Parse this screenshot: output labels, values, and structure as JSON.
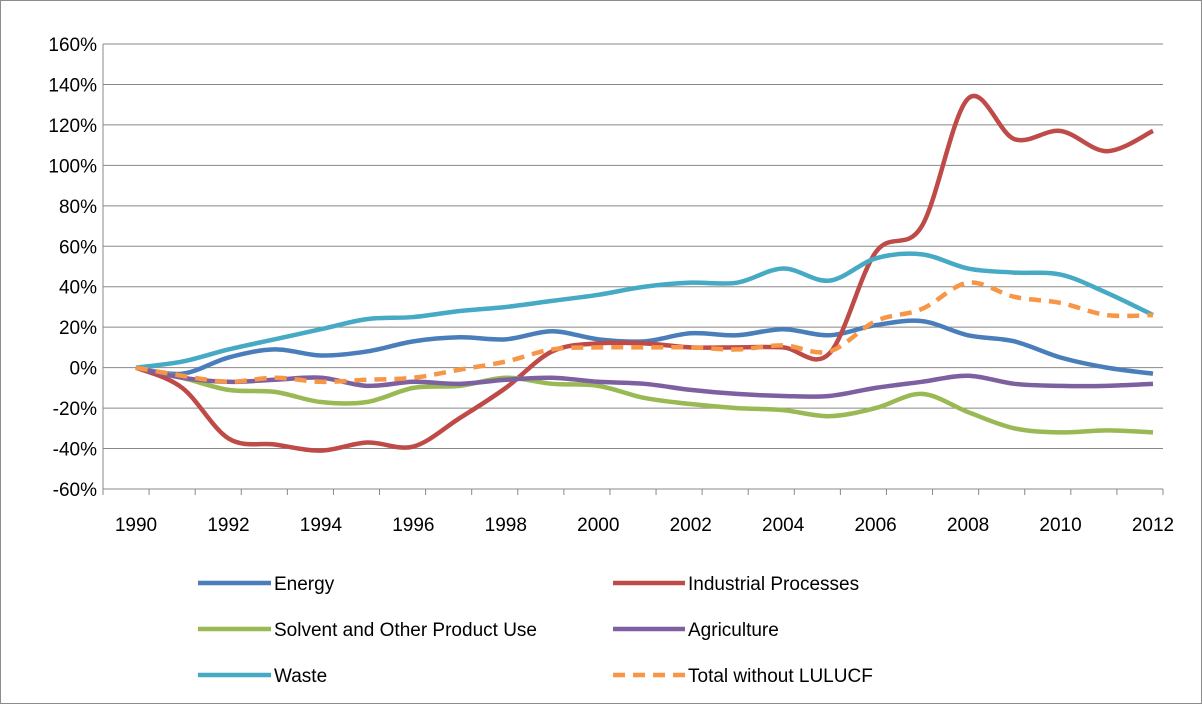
{
  "chart_data": {
    "type": "line",
    "title": "",
    "xlabel": "",
    "ylabel": "",
    "ylim": [
      -60,
      160
    ],
    "y_tick_step": 20,
    "y_unit": "%",
    "x_ticks": [
      "1990",
      "1992",
      "1994",
      "1996",
      "1998",
      "2000",
      "2002",
      "2004",
      "2006",
      "2008",
      "2010",
      "2012"
    ],
    "grid": "horizontal",
    "legend_position": "bottom",
    "x": [
      1990,
      1991,
      1992,
      1993,
      1994,
      1995,
      1996,
      1997,
      1998,
      1999,
      2000,
      2001,
      2002,
      2003,
      2004,
      2005,
      2006,
      2007,
      2008,
      2009,
      2010,
      2011,
      2012
    ],
    "series": [
      {
        "name": "Energy",
        "color": "#4a7ebb",
        "dash": false,
        "values": [
          0,
          -3,
          5,
          9,
          6,
          8,
          13,
          15,
          14,
          18,
          14,
          13,
          17,
          16,
          19,
          16,
          21,
          23,
          16,
          13,
          5,
          0,
          -3
        ]
      },
      {
        "name": "Industrial Processes",
        "color": "#be4b48",
        "dash": false,
        "values": [
          0,
          -10,
          -35,
          -38,
          -41,
          -37,
          -39,
          -25,
          -10,
          8,
          12,
          12,
          10,
          10,
          10,
          7,
          57,
          70,
          133,
          113,
          117,
          107,
          117
        ]
      },
      {
        "name": "Solvent and Other Product Use",
        "color": "#98b954",
        "dash": false,
        "values": [
          0,
          -5,
          -11,
          -12,
          -17,
          -17,
          -10,
          -9,
          -5,
          -8,
          -9,
          -15,
          -18,
          -20,
          -21,
          -24,
          -20,
          -13,
          -22,
          -30,
          -32,
          -31,
          -32
        ]
      },
      {
        "name": "Agriculture",
        "color": "#7d60a0",
        "dash": false,
        "values": [
          0,
          -5,
          -7,
          -6,
          -5,
          -9,
          -7,
          -8,
          -6,
          -5,
          -7,
          -8,
          -11,
          -13,
          -14,
          -14,
          -10,
          -7,
          -4,
          -8,
          -9,
          -9,
          -8
        ]
      },
      {
        "name": "Waste",
        "color": "#46aac5",
        "dash": false,
        "values": [
          0,
          3,
          9,
          14,
          19,
          24,
          25,
          28,
          30,
          33,
          36,
          40,
          42,
          42,
          49,
          43,
          54,
          56,
          49,
          47,
          46,
          37,
          26
        ]
      },
      {
        "name": "Total without LULUCF",
        "color": "#f79646",
        "dash": true,
        "values": [
          0,
          -4,
          -7,
          -5,
          -7,
          -6,
          -5,
          -1,
          3,
          9,
          10,
          10,
          10,
          9,
          11,
          8,
          23,
          29,
          42,
          35,
          32,
          26,
          26
        ]
      }
    ]
  }
}
